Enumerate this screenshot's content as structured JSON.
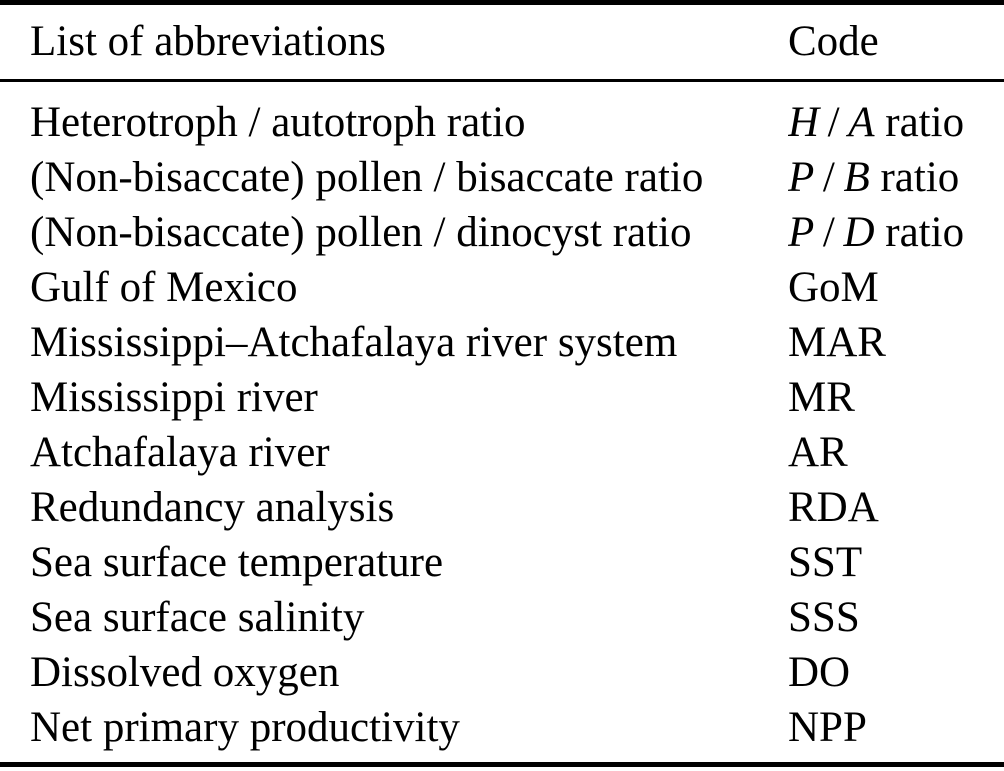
{
  "colors": {
    "background": "#ffffff",
    "text": "#000000",
    "rule": "#000000"
  },
  "table": {
    "columns": [
      {
        "label": "List of abbreviations"
      },
      {
        "label": "Code"
      }
    ],
    "rows": [
      {
        "label": "Heterotroph / autotroph ratio",
        "code_parts": [
          {
            "text": "H",
            "italic": true
          },
          {
            "text": " / ",
            "italic": false
          },
          {
            "text": "A",
            "italic": true
          },
          {
            "text": " ratio",
            "italic": false
          }
        ]
      },
      {
        "label": "(Non-bisaccate) pollen / bisaccate ratio",
        "code_parts": [
          {
            "text": "P",
            "italic": true
          },
          {
            "text": " / ",
            "italic": false
          },
          {
            "text": "B",
            "italic": true
          },
          {
            "text": " ratio",
            "italic": false
          }
        ]
      },
      {
        "label": "(Non-bisaccate) pollen / dinocyst ratio",
        "code_parts": [
          {
            "text": "P",
            "italic": true
          },
          {
            "text": " / ",
            "italic": false
          },
          {
            "text": "D",
            "italic": true
          },
          {
            "text": " ratio",
            "italic": false
          }
        ]
      },
      {
        "label": "Gulf of Mexico",
        "code_parts": [
          {
            "text": "GoM",
            "italic": false
          }
        ]
      },
      {
        "label": "Mississippi–Atchafalaya river system",
        "code_parts": [
          {
            "text": "MAR",
            "italic": false
          }
        ]
      },
      {
        "label": "Mississippi river",
        "code_parts": [
          {
            "text": "MR",
            "italic": false
          }
        ]
      },
      {
        "label": "Atchafalaya river",
        "code_parts": [
          {
            "text": "AR",
            "italic": false
          }
        ]
      },
      {
        "label": "Redundancy analysis",
        "code_parts": [
          {
            "text": "RDA",
            "italic": false
          }
        ]
      },
      {
        "label": "Sea surface temperature",
        "code_parts": [
          {
            "text": "SST",
            "italic": false
          }
        ]
      },
      {
        "label": "Sea surface salinity",
        "code_parts": [
          {
            "text": "SSS",
            "italic": false
          }
        ]
      },
      {
        "label": "Dissolved oxygen",
        "code_parts": [
          {
            "text": "DO",
            "italic": false
          }
        ]
      },
      {
        "label": "Net primary productivity",
        "code_parts": [
          {
            "text": "NPP",
            "italic": false
          }
        ]
      }
    ]
  }
}
